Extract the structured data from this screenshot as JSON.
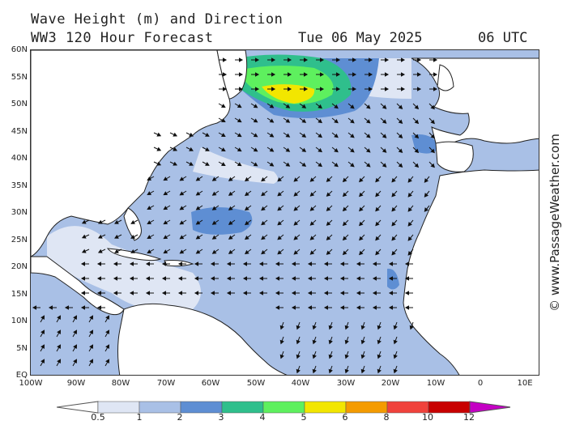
{
  "title": {
    "line1": "Wave Height (m) and Direction",
    "line2": "WW3 120 Hour Forecast",
    "date": "Tue 06 May 2025",
    "utc": "06 UTC"
  },
  "credit": "© www.PassageWeather.com",
  "lat_labels": [
    "60N",
    "55N",
    "50N",
    "45N",
    "40N",
    "35N",
    "30N",
    "25N",
    "20N",
    "15N",
    "10N",
    "5N",
    "EQ"
  ],
  "lon_labels": [
    "100W",
    "90W",
    "80W",
    "70W",
    "60W",
    "50W",
    "40W",
    "30W",
    "20W",
    "10W",
    "0",
    "10E"
  ],
  "colorbar": {
    "ticks": [
      "0.5",
      "1",
      "2",
      "3",
      "4",
      "5",
      "6",
      "8",
      "10",
      "12"
    ],
    "colors": [
      "#dfe6f4",
      "#a9c0e6",
      "#5e8ed3",
      "#2fbf8c",
      "#5ef05e",
      "#f2e600",
      "#f49b00",
      "#f0423c",
      "#c80000",
      "#c400c4"
    ]
  },
  "palette": {
    "land": "#ffffff",
    "ocean_base": "#a9c0e6",
    "ocean_light": "#dfe6f4",
    "ocean_mid": "#5e8ed3"
  }
}
